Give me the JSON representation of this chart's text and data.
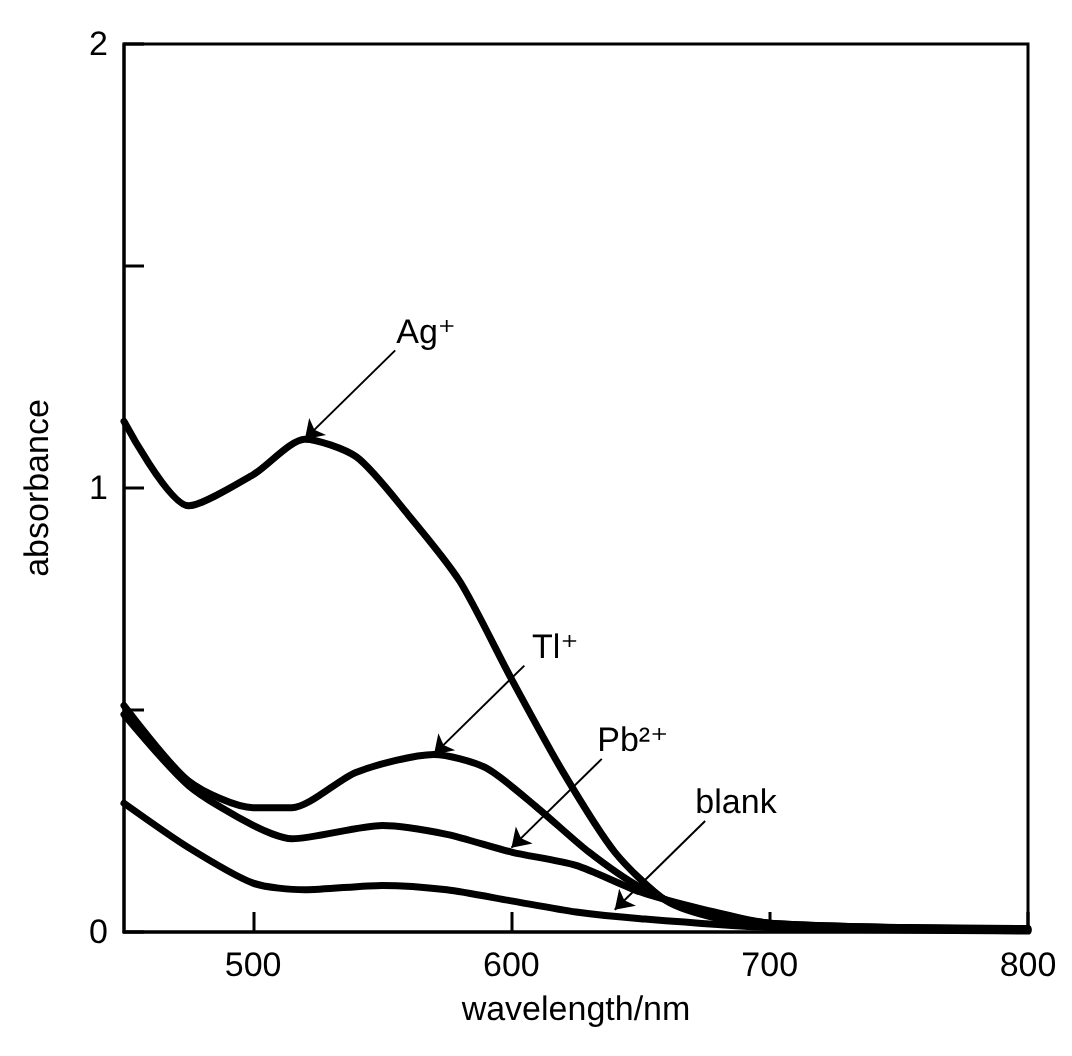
{
  "chart_data": {
    "type": "line",
    "xlabel": "wavelength/nm",
    "ylabel": "absorbance",
    "xlim": [
      450,
      800
    ],
    "xticks": [
      500,
      600,
      700,
      800
    ],
    "ylim": [
      0,
      2
    ],
    "yticks": [
      0,
      {
        "value": 0.5,
        "label": null
      },
      1,
      {
        "value": 1.5,
        "label": null
      },
      2
    ],
    "grid": false,
    "marker": "none",
    "line_style": "solid",
    "series": [
      {
        "color": "#000000",
        "x": [
          450,
          475,
          500,
          520,
          540,
          560,
          580,
          600,
          620,
          640,
          660,
          680,
          700,
          750,
          800
        ],
        "values": [
          1.15,
          0.96,
          1.03,
          1.11,
          1.07,
          0.94,
          0.79,
          0.57,
          0.36,
          0.18,
          0.07,
          0.03,
          0.015,
          0.01,
          0.008
        ]
      },
      {
        "color": "#000000",
        "x": [
          450,
          475,
          500,
          515,
          540,
          570,
          590,
          610,
          630,
          650,
          670,
          700,
          750,
          800
        ],
        "values": [
          0.51,
          0.34,
          0.28,
          0.28,
          0.36,
          0.4,
          0.37,
          0.28,
          0.18,
          0.1,
          0.05,
          0.02,
          0.01,
          0.006
        ]
      },
      {
        "color": "#000000",
        "x": [
          450,
          475,
          500,
          515,
          550,
          575,
          600,
          625,
          650,
          675,
          700,
          800
        ],
        "values": [
          0.49,
          0.33,
          0.24,
          0.21,
          0.24,
          0.22,
          0.18,
          0.15,
          0.09,
          0.05,
          0.02,
          0.004
        ]
      },
      {
        "color": "#000000",
        "x": [
          450,
          475,
          500,
          520,
          550,
          575,
          600,
          625,
          650,
          700,
          800
        ],
        "values": [
          0.29,
          0.19,
          0.11,
          0.095,
          0.105,
          0.095,
          0.07,
          0.045,
          0.03,
          0.01,
          0.002
        ]
      }
    ],
    "annotations": [
      {
        "text": "Ag⁺",
        "x": 520,
        "y": 1.11
      },
      {
        "text": "Tl⁺",
        "x": 570,
        "y": 0.4
      },
      {
        "text": "Pb²⁺",
        "x": 600,
        "y": 0.19
      },
      {
        "text": "blank",
        "x": 640,
        "y": 0.05
      }
    ]
  }
}
